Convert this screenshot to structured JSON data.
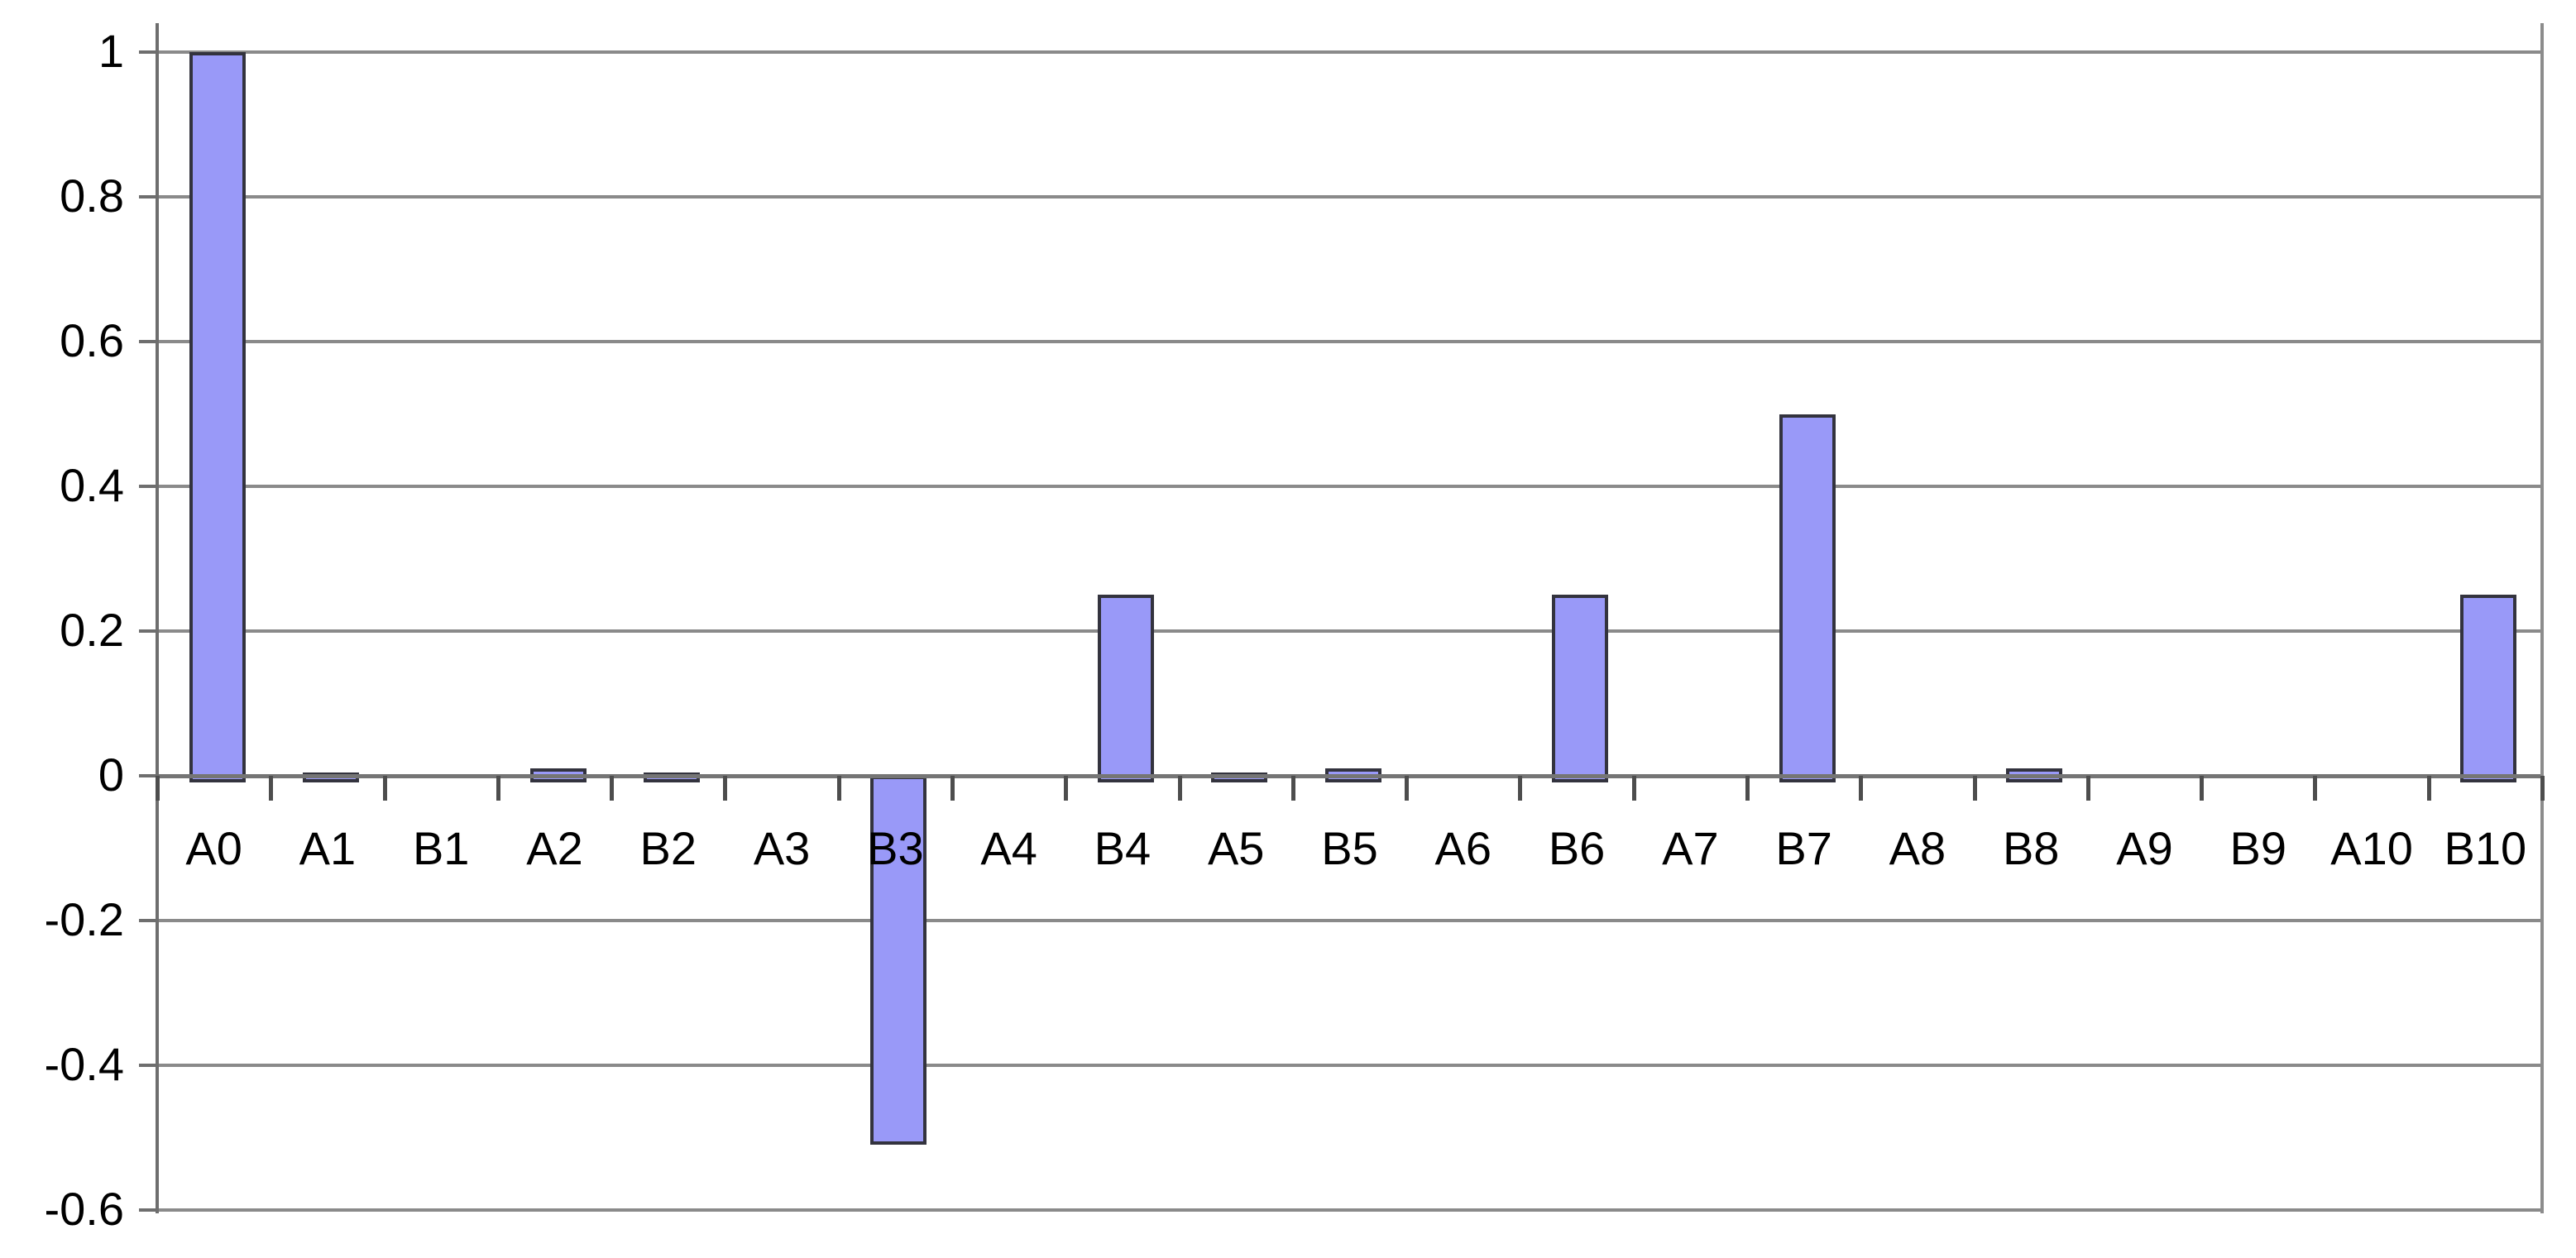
{
  "chart_data": {
    "type": "bar",
    "title": "",
    "xlabel": "",
    "ylabel": "",
    "categories": [
      "A0",
      "A1",
      "B1",
      "A2",
      "B2",
      "A3",
      "B3",
      "A4",
      "B4",
      "A5",
      "B5",
      "A6",
      "B6",
      "A7",
      "B7",
      "A8",
      "B8",
      "A9",
      "B9",
      "A10",
      "B10"
    ],
    "values": [
      1,
      0.005,
      0,
      0.01,
      0.005,
      0,
      -0.5,
      0,
      0.25,
      0.005,
      0.01,
      0,
      0.25,
      0,
      0.5,
      0,
      0.01,
      0,
      0,
      0,
      0.25
    ],
    "y_ticks": [
      1,
      0.8,
      0.6,
      0.4,
      0.2,
      0,
      -0.2,
      -0.4,
      -0.6
    ],
    "y_tick_labels": [
      "1",
      "0.8",
      "0.6",
      "0.4",
      "0.2",
      "0",
      "-0.2",
      "-0.4",
      "-0.6"
    ],
    "ylim": [
      -0.6,
      1.04
    ],
    "grid": true,
    "legend_position": "none",
    "colors": {
      "bar_fill": "#9999F8",
      "bar_border": "#33333E",
      "gridline": "#8a8a8a",
      "axis": "#6e6e6e",
      "zero_line": "#757575",
      "text": "#000000",
      "background": "#ffffff"
    }
  }
}
